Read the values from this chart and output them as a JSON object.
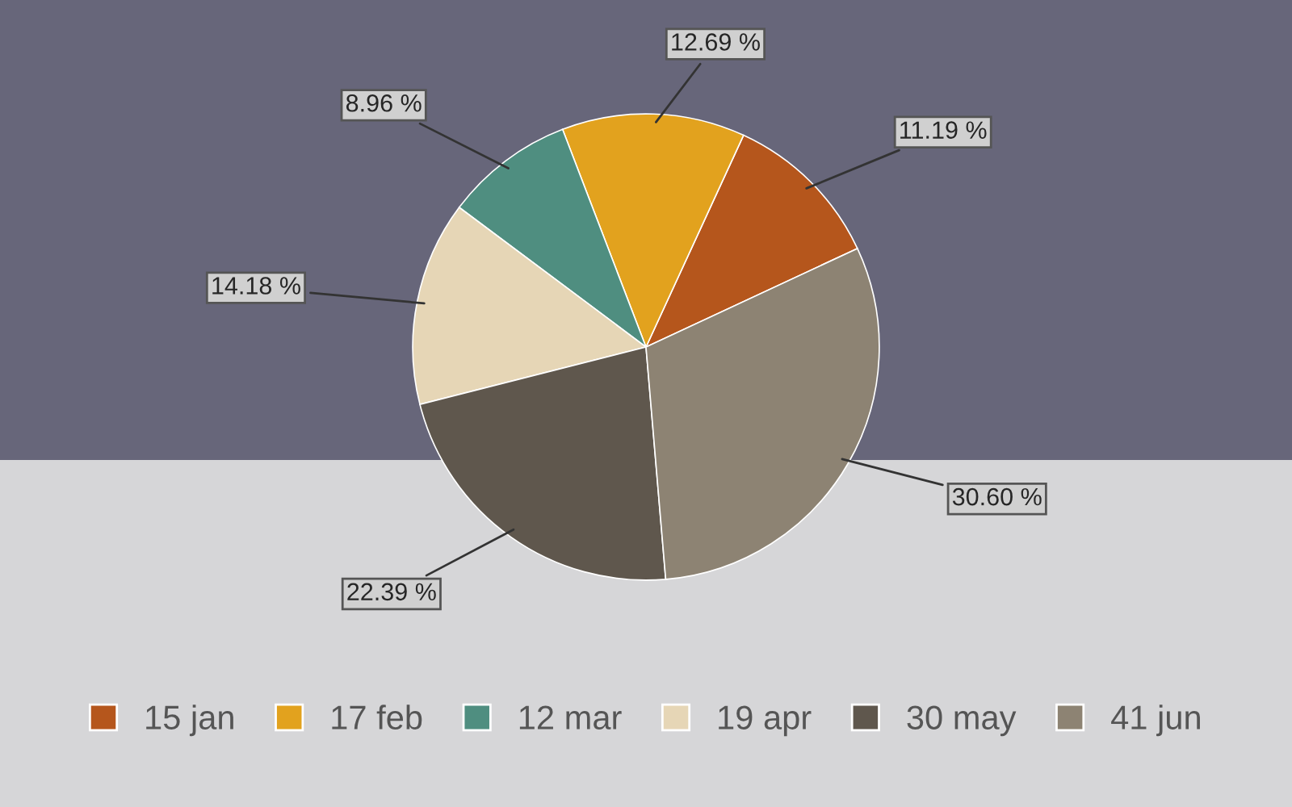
{
  "chart_data": {
    "type": "pie",
    "categories": [
      "15 jan",
      "17 feb",
      "12 mar",
      "19 apr",
      "30 may",
      "41 jun"
    ],
    "values": [
      11.19,
      12.69,
      8.96,
      14.18,
      22.39,
      30.6
    ],
    "value_labels": [
      "11.19 %",
      "12.69 %",
      "8.96 %",
      "14.18 %",
      "22.39 %",
      "30.60 %"
    ],
    "colors": [
      "#b5561c",
      "#e2a21e",
      "#4f8e80",
      "#e6d6b6",
      "#5f574d",
      "#8d8373"
    ],
    "legend": "bottom"
  }
}
